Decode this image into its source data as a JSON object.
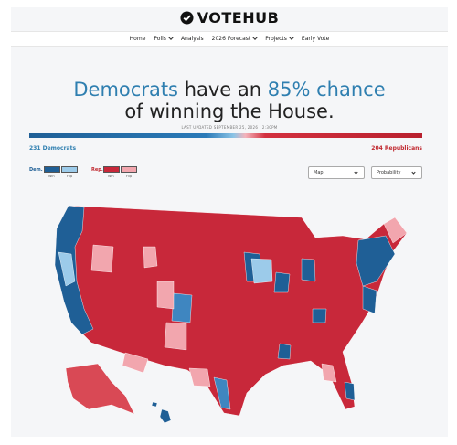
{
  "header": {
    "logo": "VOTEHUB",
    "nav": [
      "Home",
      "Polls",
      "Analysis",
      "2026 Forecast",
      "Projects",
      "Early Vote"
    ]
  },
  "headline": {
    "dem": "Democrats",
    "mid": "have an",
    "chance": "85% chance",
    "end": "of winning the House."
  },
  "updated": "LAST UPDATED SEPTEMBER 25, 2026 · 2:30PM",
  "seats": {
    "dem": "231 Democrats",
    "rep": "204 Republicans"
  },
  "legend": {
    "dem": "Dem.",
    "dem_win": "Win",
    "dem_flip": "Flip",
    "rep": "Rep.",
    "rep_win": "Win",
    "rep_flip": "Flip"
  },
  "controls": {
    "view": "Map",
    "metric": "Probability"
  }
}
